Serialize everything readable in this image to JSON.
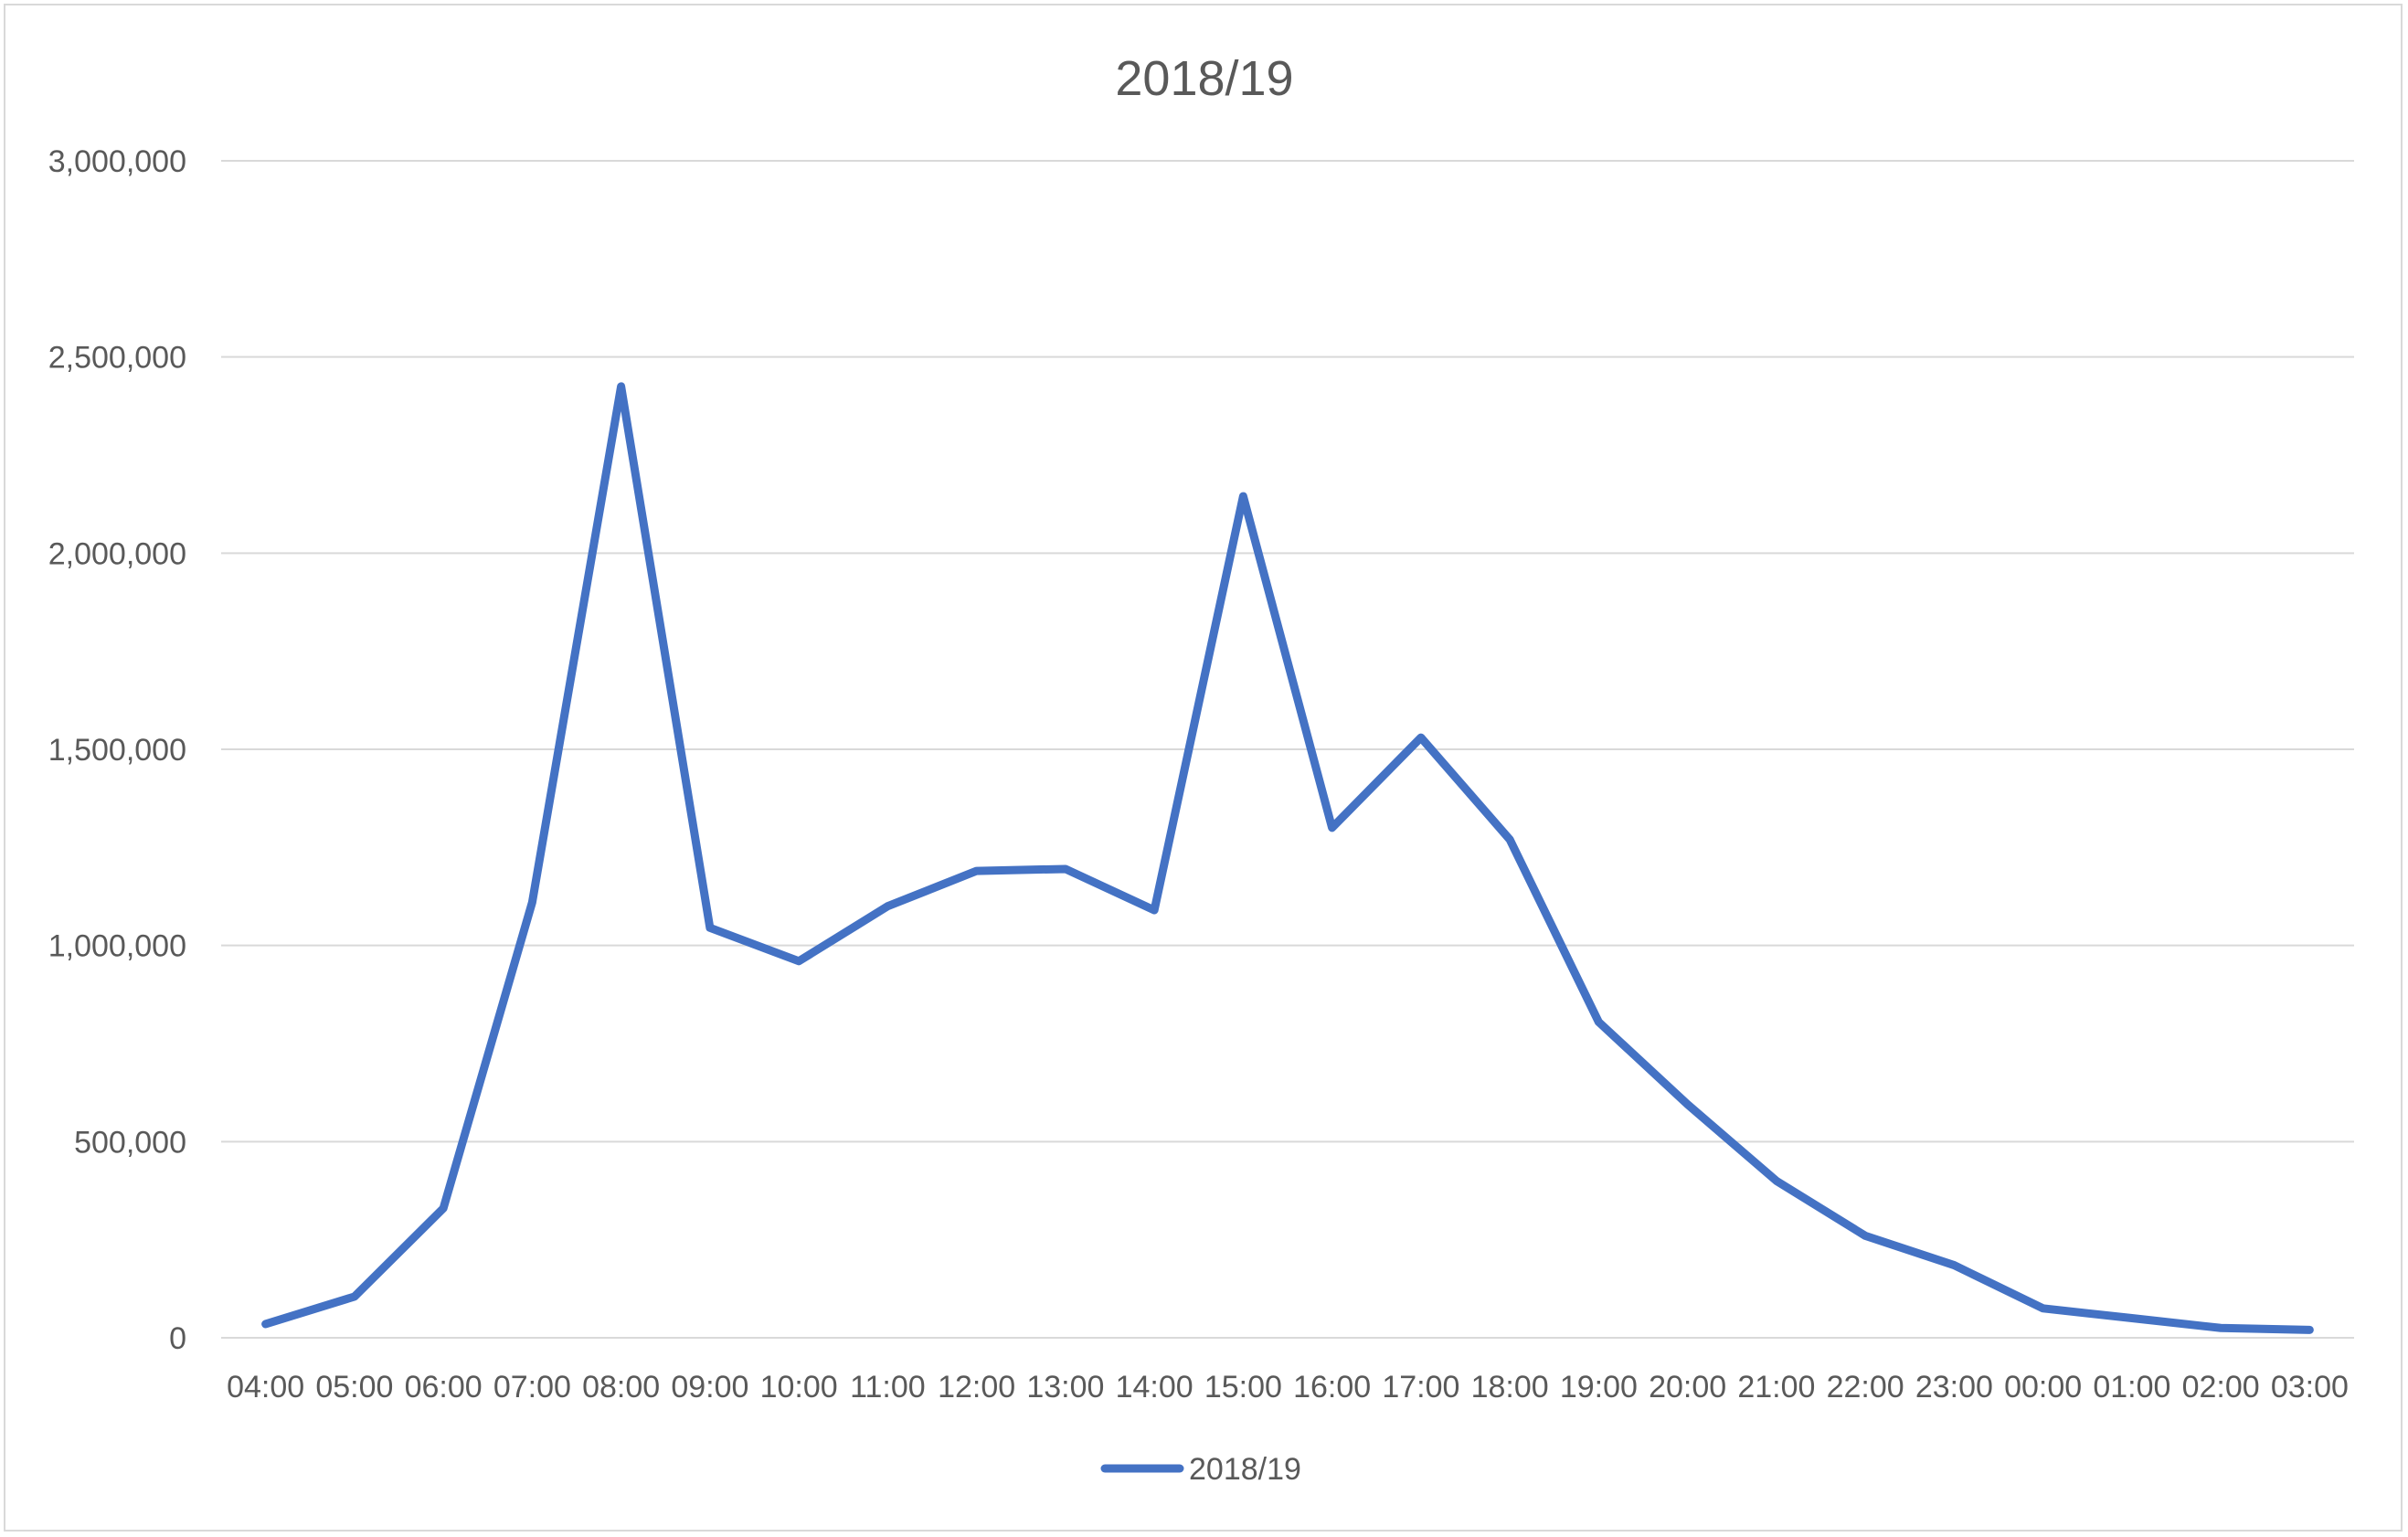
{
  "chart_data": {
    "type": "line",
    "title": "2018/19",
    "categories": [
      "04:00",
      "05:00",
      "06:00",
      "07:00",
      "08:00",
      "09:00",
      "10:00",
      "11:00",
      "12:00",
      "13:00",
      "14:00",
      "15:00",
      "16:00",
      "17:00",
      "18:00",
      "19:00",
      "20:00",
      "21:00",
      "22:00",
      "23:00",
      "00:00",
      "01:00",
      "02:00",
      "03:00"
    ],
    "series": [
      {
        "name": "2018/19",
        "color": "#4472c4",
        "values": [
          35000,
          105000,
          330000,
          1110000,
          2425000,
          1045000,
          960000,
          1100000,
          1190000,
          1195000,
          1090000,
          2145000,
          1300000,
          1530000,
          1270000,
          805000,
          595000,
          400000,
          260000,
          185000,
          75000,
          50000,
          25000,
          20000
        ]
      }
    ],
    "yticks": [
      "0",
      "500,000",
      "1,000,000",
      "1,500,000",
      "2,000,000",
      "2,500,000",
      "3,000,000"
    ],
    "ylim": [
      0,
      3000000
    ],
    "grid": true,
    "legend": "bottom"
  }
}
